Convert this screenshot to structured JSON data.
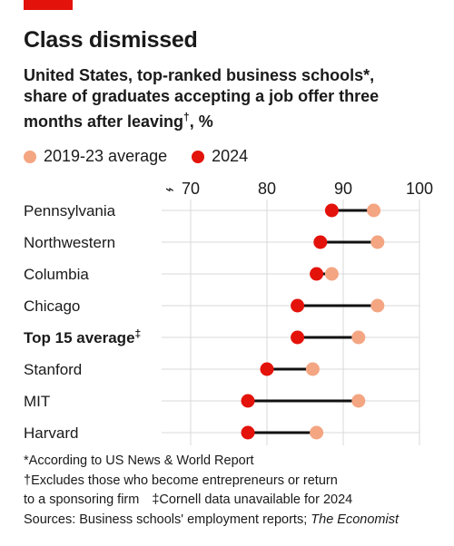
{
  "header": {
    "title": "Class dismissed",
    "subtitle_lines": [
      "United States, top-ranked business schools*,",
      "share of graduates accepting a job offer three",
      "months after leaving",
      ", %"
    ],
    "subtitle_mark": "†"
  },
  "legend": [
    {
      "label": "2019-23 average",
      "color": "#f4a582"
    },
    {
      "label": "2024",
      "color": "#e3120b"
    }
  ],
  "chart_data": {
    "type": "dot",
    "title": "Class dismissed",
    "xlim": [
      70,
      100
    ],
    "x_ticks": [
      "70",
      "80",
      "90",
      "100"
    ],
    "axis_break_symbol": "⌁",
    "grid": true,
    "legend_position": "top-left",
    "categories": [
      "Pennsylvania",
      "Northwestern",
      "Columbia",
      "Chicago",
      "Top 15 average",
      "Stanford",
      "MIT",
      "Harvard"
    ],
    "category_marks": [
      "",
      "",
      "",
      "",
      "‡",
      "",
      "",
      ""
    ],
    "bold_categories": [
      "Top 15 average"
    ],
    "series": [
      {
        "name": "2019-23 average",
        "color": "#f4a582",
        "values": [
          94,
          94.5,
          88.5,
          94.5,
          92,
          86,
          92,
          86.5
        ]
      },
      {
        "name": "2024",
        "color": "#e3120b",
        "values": [
          88.5,
          87,
          86.5,
          84,
          84,
          80,
          77.5,
          77.5
        ]
      }
    ]
  },
  "notes": {
    "line1": "*According to US News & World Report",
    "line2": "†Excludes those who become entrepreneurs or return",
    "line3a": "to a sponsoring firm",
    "line3b": "‡Cornell data unavailable for 2024",
    "line4a": "Sources: Business schools' employment reports; ",
    "line4b": "The Economist"
  }
}
